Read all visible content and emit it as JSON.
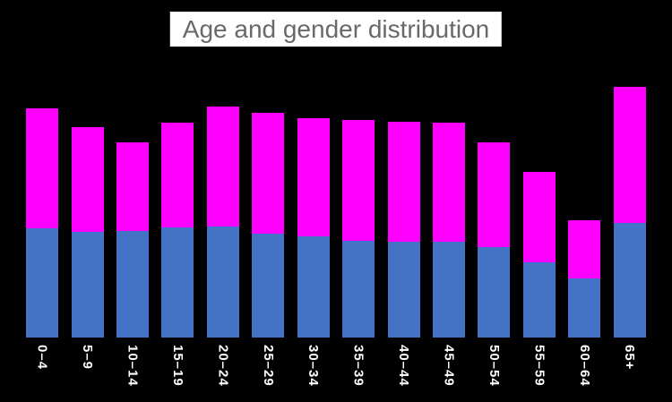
{
  "page": {
    "background": "#000000"
  },
  "title": {
    "text": "Age and gender distribution",
    "background": "#ffffff",
    "color": "#696969"
  },
  "chart_data": {
    "type": "bar",
    "stacked": true,
    "title": "Age and gender distribution",
    "categories": [
      "0–4",
      "5–9",
      "10–14",
      "15–19",
      "20–24",
      "25–29",
      "30–34",
      "35–39",
      "40–44",
      "45–49",
      "50–54",
      "55–59",
      "60–64",
      "65+"
    ],
    "series": [
      {
        "name": "lower-blue-segment",
        "color": "#4472c4",
        "values": [
          3.76,
          3.64,
          3.67,
          3.79,
          3.83,
          3.58,
          3.49,
          3.33,
          3.3,
          3.3,
          3.12,
          2.59,
          2.04,
          3.95
        ]
      },
      {
        "name": "upper-magenta-segment",
        "color": "#ff00ff",
        "values": [
          4.13,
          3.61,
          3.05,
          3.61,
          4.13,
          4.17,
          4.07,
          4.17,
          4.13,
          4.1,
          3.61,
          3.12,
          2.01,
          4.69
        ]
      }
    ],
    "xlabel": "",
    "ylabel": "",
    "axes_visible": false,
    "gridlines": false,
    "legend": "none",
    "value_note": "percent of total, estimated from bar heights; no axis or data labels shown",
    "x_label_rotation_deg": 90,
    "x_label_color": "#ffffff"
  }
}
